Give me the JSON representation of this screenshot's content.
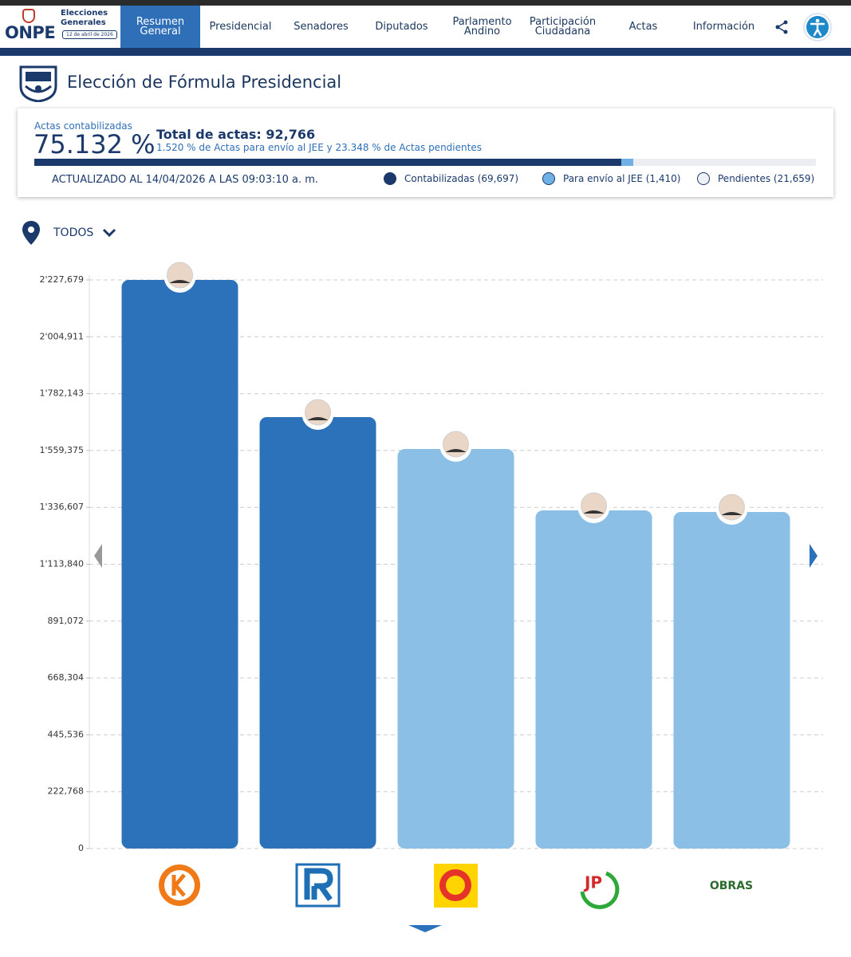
{
  "nav": {
    "brand": "ONPE",
    "event": "Elecciones Generales",
    "date": "12 de abril de 2026",
    "items": [
      "Resumen General",
      "Presidencial",
      "Senadores",
      "Diputados",
      "Parlamento Andino",
      "Participación Ciudadana",
      "Actas",
      "Información"
    ]
  },
  "header": {
    "title": "Elección de Fórmula Presidencial"
  },
  "summary": {
    "label": "Actas contabilizadas",
    "percent": "75.132 %",
    "total": "Total de actas: 92,766",
    "detail": "1.520 % de Actas para envío al JEE y 23.348 % de Actas pendientes",
    "progress": {
      "counted": 75.132,
      "jee": 1.52
    },
    "updated": "ACTUALIZADO AL 14/04/2026 A LAS 09:03:10 a. m.",
    "legend": [
      "Contabilizadas (69,697)",
      "Para envío al JEE (1,410)",
      "Pendientes (21,659)"
    ]
  },
  "filter": "TODOS",
  "chart_data": {
    "type": "bar",
    "categories": [
      null,
      null,
      null,
      null,
      null
    ],
    "values": [
      2227679,
      1690300,
      1565300,
      1324700,
      1318500
    ],
    "colors": [
      "#2c72ba",
      "#2c72ba",
      "#8bbfe5",
      "#8bbfe5",
      "#8bbfe5"
    ],
    "ylim": [
      0,
      2227679
    ],
    "yticks": [
      0,
      {
        "value": 222768,
        "label": "222,768"
      },
      {
        "value": 445536,
        "label": "445,536"
      },
      {
        "value": 668304,
        "label": "668,304"
      },
      {
        "value": 891072,
        "label": "891,072"
      },
      {
        "value": 1113840,
        "label": "1'113,840"
      },
      {
        "value": 1336607,
        "label": "1'336,607"
      },
      {
        "value": 1559375,
        "label": "1'559,375"
      },
      {
        "value": 1782143,
        "label": "1'782,143"
      },
      {
        "value": 2004911,
        "label": "2'004,911"
      },
      {
        "value": 2227679,
        "label": "2'227,679"
      }
    ],
    "grid": true
  }
}
